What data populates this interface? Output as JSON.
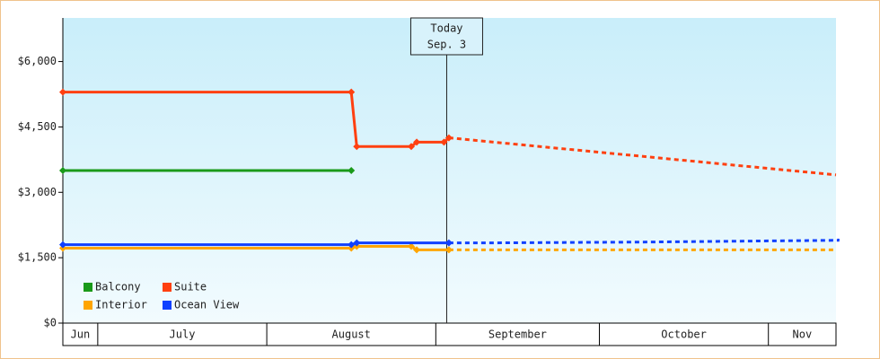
{
  "chart_data": {
    "type": "line",
    "xlim": [
      23.6,
      165.4
    ],
    "ylim": [
      0,
      7000
    ],
    "yticks": [
      {
        "value": 0,
        "label": "$0"
      },
      {
        "value": 1500,
        "label": "$1,500"
      },
      {
        "value": 3000,
        "label": "$3,000"
      },
      {
        "value": 4500,
        "label": "$4,500"
      },
      {
        "value": 6000,
        "label": "$6,000"
      }
    ],
    "xticks": [
      {
        "value": 0,
        "label": "Jun"
      },
      {
        "value": 30,
        "label": "July"
      },
      {
        "value": 61,
        "label": "August"
      },
      {
        "value": 92,
        "label": "September"
      },
      {
        "value": 122,
        "label": "October"
      },
      {
        "value": 153,
        "label": "Nov"
      }
    ],
    "annotation": {
      "x": 94,
      "text": [
        "Today",
        "Sep. 3"
      ]
    },
    "legend": "bottom-left",
    "series": [
      {
        "name": "Balcony",
        "color": "#1a9a1a",
        "x": [
          23.6,
          76.5
        ],
        "values": [
          3500,
          3500
        ],
        "projection": {
          "x": [],
          "values": []
        }
      },
      {
        "name": "Suite",
        "color": "#ff4010",
        "x": [
          23.6,
          76.5,
          77.5,
          87.5,
          88.5,
          93.5,
          94.4
        ],
        "values": [
          5300,
          5300,
          4050,
          4050,
          4150,
          4150,
          4250
        ],
        "projection": {
          "x": [
            94.4,
            165.4
          ],
          "values": [
            4250,
            3400
          ]
        }
      },
      {
        "name": "Interior",
        "color": "#ffa500",
        "x": [
          23.6,
          76.5,
          77.5,
          87.5,
          88.5,
          94.4
        ],
        "values": [
          1720,
          1720,
          1760,
          1760,
          1680,
          1680
        ],
        "projection": {
          "x": [
            94.4,
            165.4
          ],
          "values": [
            1680,
            1680
          ]
        }
      },
      {
        "name": "Ocean View",
        "color": "#1040ff",
        "x": [
          23.6,
          76.5,
          77.5,
          94.4
        ],
        "values": [
          1800,
          1800,
          1840,
          1840
        ],
        "projection": {
          "x": [
            94.4,
            102,
            131,
            166,
            165.4
          ],
          "values": [
            1840,
            1840,
            1860,
            1900,
            1920
          ]
        }
      }
    ]
  }
}
